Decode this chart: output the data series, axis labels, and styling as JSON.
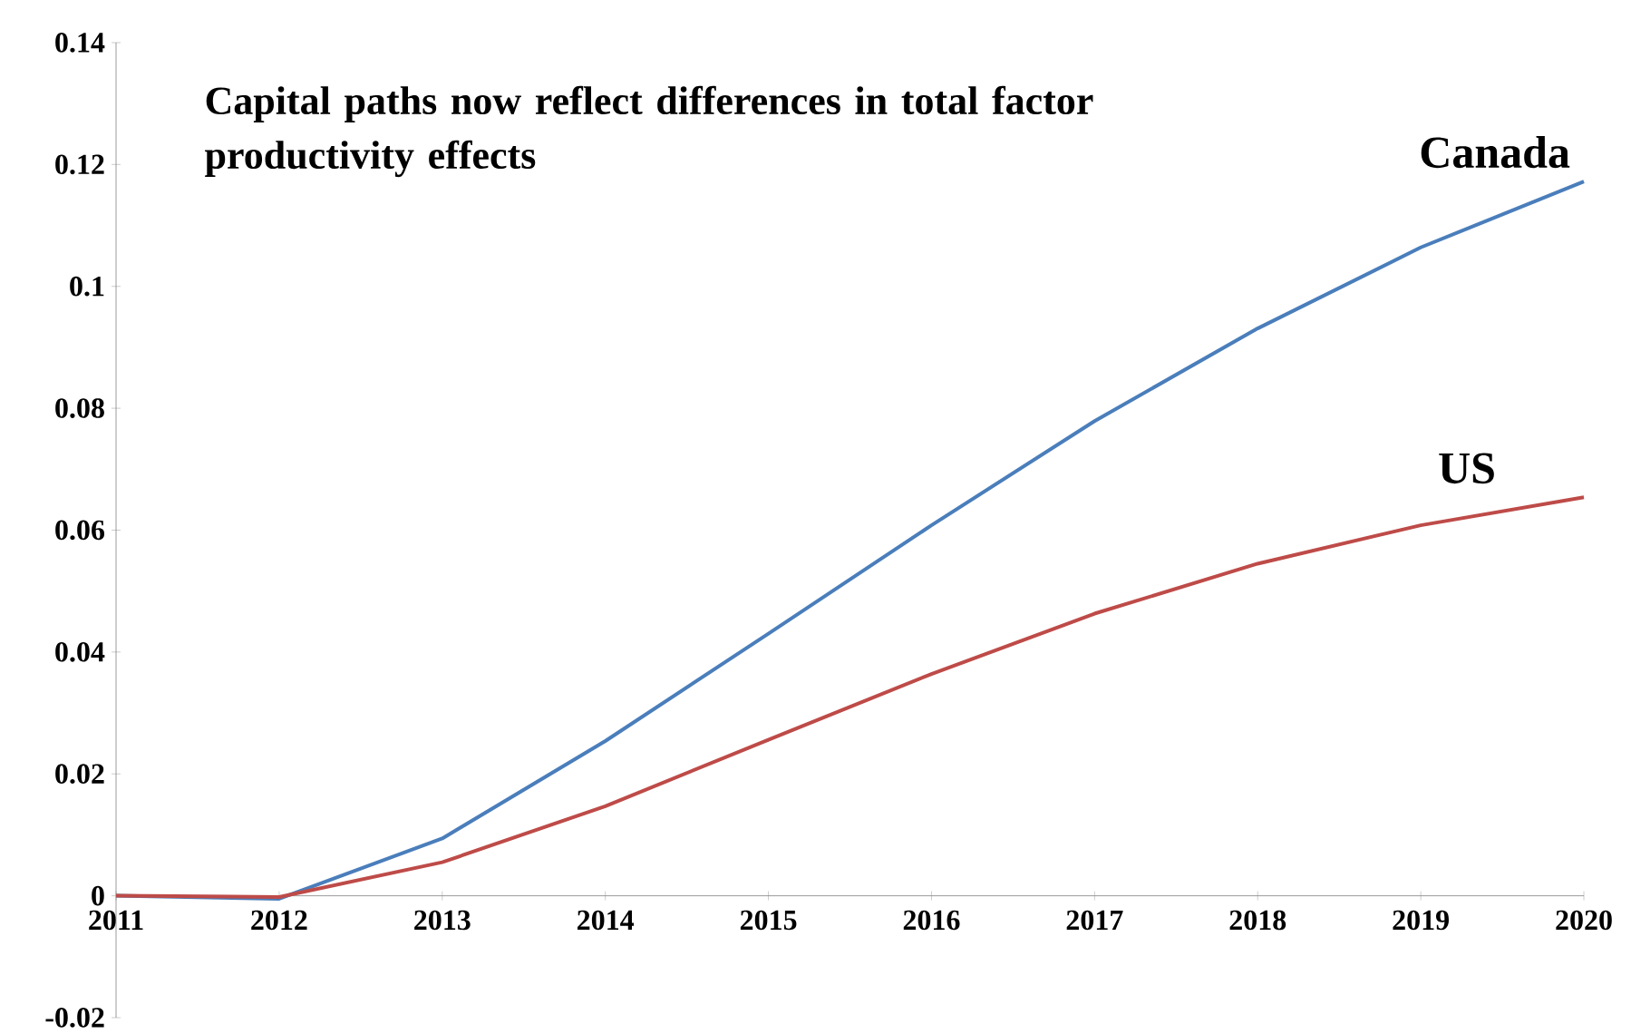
{
  "chart_data": {
    "type": "line",
    "title": "Capital paths now reflect differences in total factor productivity effects",
    "categories": [
      "2011",
      "2012",
      "2013",
      "2014",
      "2015",
      "2016",
      "2017",
      "2018",
      "2019",
      "2020"
    ],
    "series": [
      {
        "name": "Canada",
        "color": "#4a7ebb",
        "values": [
          0,
          -0.0005,
          0.0094,
          0.0254,
          0.043,
          0.0608,
          0.0779,
          0.0931,
          0.1064,
          0.1172
        ]
      },
      {
        "name": "US",
        "color": "#be4b48",
        "values": [
          0,
          -0.0002,
          0.0055,
          0.0147,
          0.0256,
          0.0364,
          0.0463,
          0.0545,
          0.0608,
          0.0654
        ]
      }
    ],
    "ylim": [
      -0.02,
      0.14
    ],
    "yticks": [
      {
        "value": -0.02,
        "label": "-0.02"
      },
      0,
      0.02,
      0.04,
      0.06,
      0.08,
      {
        "value": 0.1,
        "label": "0.1"
      },
      0.12,
      0.14
    ],
    "grid": false,
    "marker": "none",
    "line_style": "solid"
  }
}
